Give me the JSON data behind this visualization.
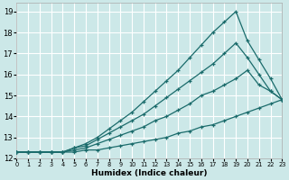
{
  "xlabel": "Humidex (Indice chaleur)",
  "bg_color": "#cce8e8",
  "grid_color": "#ffffff",
  "line_color": "#1a6b6b",
  "xlim": [
    0,
    23
  ],
  "ylim": [
    12,
    19.4
  ],
  "xticks": [
    0,
    1,
    2,
    3,
    4,
    5,
    6,
    7,
    8,
    9,
    10,
    11,
    12,
    13,
    14,
    15,
    16,
    17,
    18,
    19,
    20,
    21,
    22,
    23
  ],
  "yticks": [
    12,
    13,
    14,
    15,
    16,
    17,
    18,
    19
  ],
  "series": [
    [
      12.3,
      12.3,
      12.3,
      12.3,
      12.3,
      12.3,
      12.4,
      12.4,
      12.5,
      12.6,
      12.7,
      12.8,
      12.9,
      13.0,
      13.2,
      13.3,
      13.5,
      13.6,
      13.8,
      14.0,
      14.2,
      14.4,
      14.6,
      14.8
    ],
    [
      12.3,
      12.3,
      12.3,
      12.3,
      12.3,
      12.4,
      12.5,
      12.7,
      12.9,
      13.1,
      13.3,
      13.5,
      13.8,
      14.0,
      14.3,
      14.6,
      15.0,
      15.2,
      15.5,
      15.8,
      16.2,
      15.5,
      15.2,
      14.8
    ],
    [
      12.3,
      12.3,
      12.3,
      12.3,
      12.3,
      12.5,
      12.6,
      12.9,
      13.2,
      13.5,
      13.8,
      14.1,
      14.5,
      14.9,
      15.3,
      15.7,
      16.1,
      16.5,
      17.0,
      17.5,
      16.8,
      16.0,
      15.2,
      14.8
    ],
    [
      12.3,
      12.3,
      12.3,
      12.3,
      12.3,
      12.5,
      12.7,
      13.0,
      13.4,
      13.8,
      14.2,
      14.7,
      15.2,
      15.7,
      16.2,
      16.8,
      17.4,
      18.0,
      18.5,
      19.0,
      17.6,
      16.7,
      15.8,
      14.8
    ]
  ]
}
